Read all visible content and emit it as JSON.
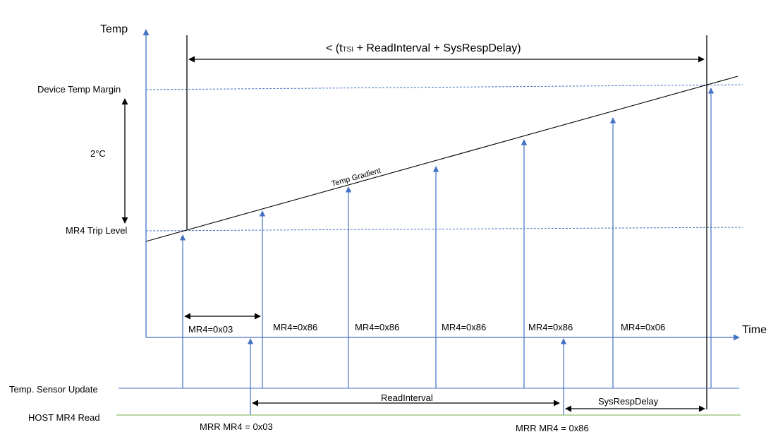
{
  "colors": {
    "axis": "#4472C4",
    "arrow_blue": "#4472C4",
    "dashed_line": "#4472C4",
    "sensor_line": "#4472C4",
    "host_line": "#70AD47",
    "black": "#000000"
  },
  "axes": {
    "y_label": "Temp",
    "x_label": "Time"
  },
  "levels": {
    "device_temp_margin": "Device Temp Margin",
    "mr4_trip_level": "MR4 Trip Level",
    "delta": "2°C"
  },
  "gradient_label": "Temp Gradient",
  "bound_label": {
    "prefix": "< (t",
    "subscript": "TSI",
    "suffix": " + ReadInterval + SysRespDelay)"
  },
  "mr4_values": [
    "MR4=0x03",
    "MR4=0x86",
    "MR4=0x86",
    "MR4=0x86",
    "MR4=0x86",
    "MR4=0x06"
  ],
  "rows": {
    "sensor_update": "Temp. Sensor Update",
    "host_read": "HOST MR4 Read"
  },
  "interval_labels": {
    "read_interval": "ReadInterval",
    "sys_resp_delay": "SysRespDelay"
  },
  "mrr_labels": [
    "MRR MR4 = 0x03",
    "MRR MR4 = 0x86"
  ]
}
